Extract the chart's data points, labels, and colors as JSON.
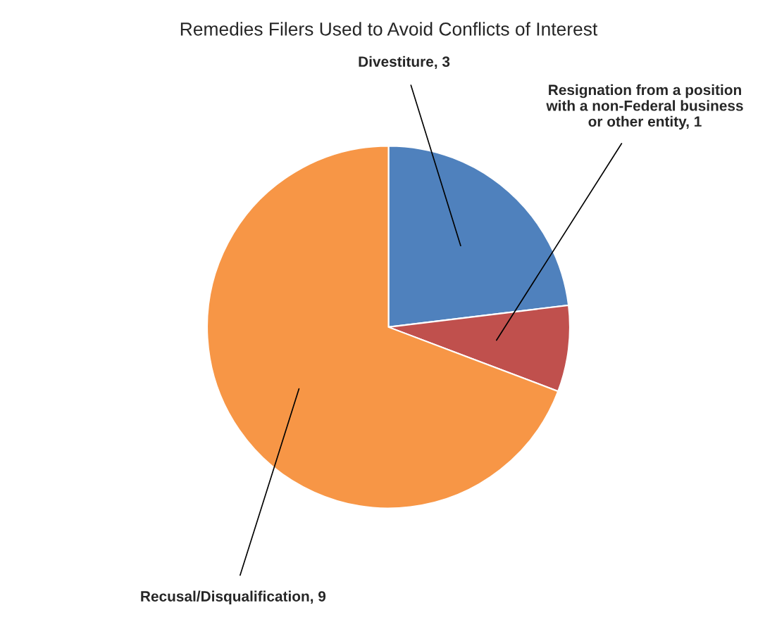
{
  "chart_data": {
    "type": "pie",
    "title": "Remedies Filers Used to Avoid Conflicts of Interest",
    "categories": [
      "Divestiture, 3",
      "Resignation from a position with a non-Federal business or other entity, 1",
      "Recusal/Disqualification, 9"
    ],
    "values": [
      3,
      1,
      9
    ],
    "colors": [
      "#4f81bd",
      "#c0504d",
      "#f79646"
    ]
  }
}
